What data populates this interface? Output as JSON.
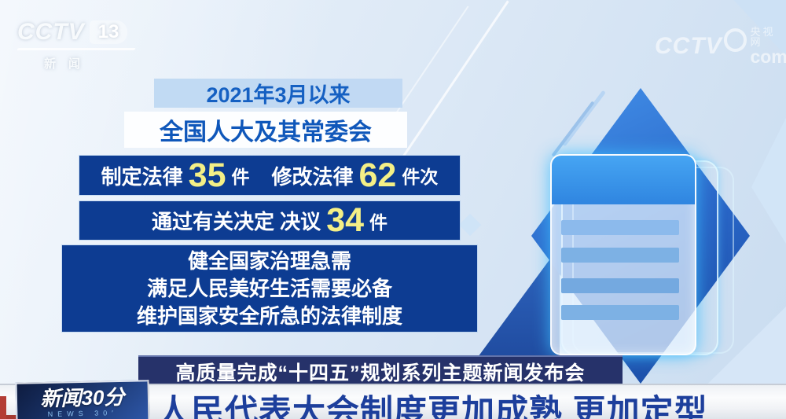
{
  "branding": {
    "cctv13": {
      "name": "CCTV",
      "channel": "13",
      "caption": "新闻"
    },
    "cctvcom": {
      "name": "CCTV",
      "site": "央视网",
      "domain": "com"
    },
    "news30": {
      "title": "新闻30分",
      "subtitle": "NEWS 30′"
    }
  },
  "infographic": {
    "period": "2021年3月以来",
    "organization": "全国人大及其常委会",
    "legislation_row": {
      "label_enact": "制定法律",
      "value_enact": "35",
      "unit_enact": "件",
      "label_amend": "修改法律",
      "value_amend": "62",
      "unit_amend": "件次"
    },
    "decision_row": {
      "label": "通过有关决定 决议",
      "value": "34",
      "unit": "件"
    },
    "summary_lines": [
      "健全国家治理急需",
      "满足人民美好生活需要必备",
      "维护国家安全所急的法律制度"
    ]
  },
  "banner": {
    "title": "高质量完成“十四五”规划系列主题新闻发布会"
  },
  "ticker": {
    "headline": "人民代表大会制度更加成熟 更加定型"
  },
  "colors": {
    "navy_box": "#0d3c92",
    "pale_box": "#c3d9f1",
    "accent_number": "#f4ef86",
    "banner_navy": "#26326a",
    "headline_blue": "#1d3f9c",
    "diamond_blue": "#2d6fd2"
  }
}
